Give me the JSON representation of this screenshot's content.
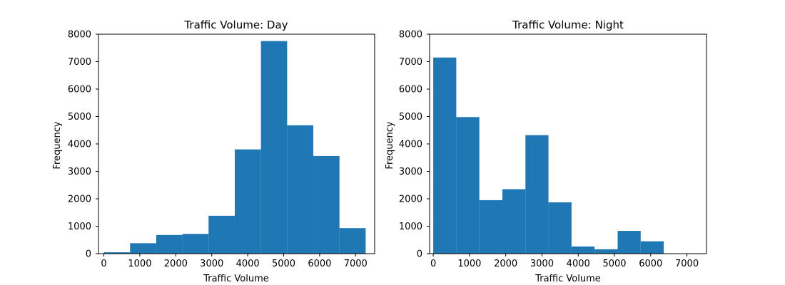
{
  "chart_data": [
    {
      "type": "bar",
      "title": "Traffic Volume: Day",
      "xlabel": "Traffic Volume",
      "ylabel": "Frequency",
      "xlim": [
        -150,
        7530
      ],
      "ylim": [
        0,
        8000
      ],
      "xticks": [
        "0",
        "1000",
        "2000",
        "3000",
        "4000",
        "5000",
        "6000",
        "7000"
      ],
      "yticks": [
        "0",
        "1000",
        "2000",
        "3000",
        "4000",
        "5000",
        "6000",
        "7000",
        "8000"
      ],
      "bin_edges": [
        0,
        728,
        1456,
        2184,
        2912,
        3640,
        4368,
        5096,
        5824,
        6552,
        7280
      ],
      "values": [
        50,
        380,
        680,
        720,
        1380,
        3800,
        7750,
        4680,
        3560,
        930
      ],
      "color": "#1f77b4",
      "grid": false,
      "legend": false
    },
    {
      "type": "bar",
      "title": "Traffic Volume: Night",
      "xlabel": "Traffic Volume",
      "ylabel": "Frequency",
      "xlim": [
        -100,
        7540
      ],
      "ylim": [
        0,
        8000
      ],
      "xticks": [
        "0",
        "1000",
        "2000",
        "3000",
        "4000",
        "5000",
        "6000",
        "7000"
      ],
      "yticks": [
        "0",
        "1000",
        "2000",
        "3000",
        "4000",
        "5000",
        "6000",
        "7000",
        "8000"
      ],
      "bin_edges": [
        0,
        636,
        1272,
        1908,
        2544,
        3180,
        3816,
        4452,
        5088,
        5724,
        6360
      ],
      "values": [
        7150,
        4980,
        1950,
        2350,
        4320,
        1870,
        260,
        160,
        830,
        450
      ],
      "color": "#1f77b4",
      "grid": false,
      "legend": false
    }
  ]
}
